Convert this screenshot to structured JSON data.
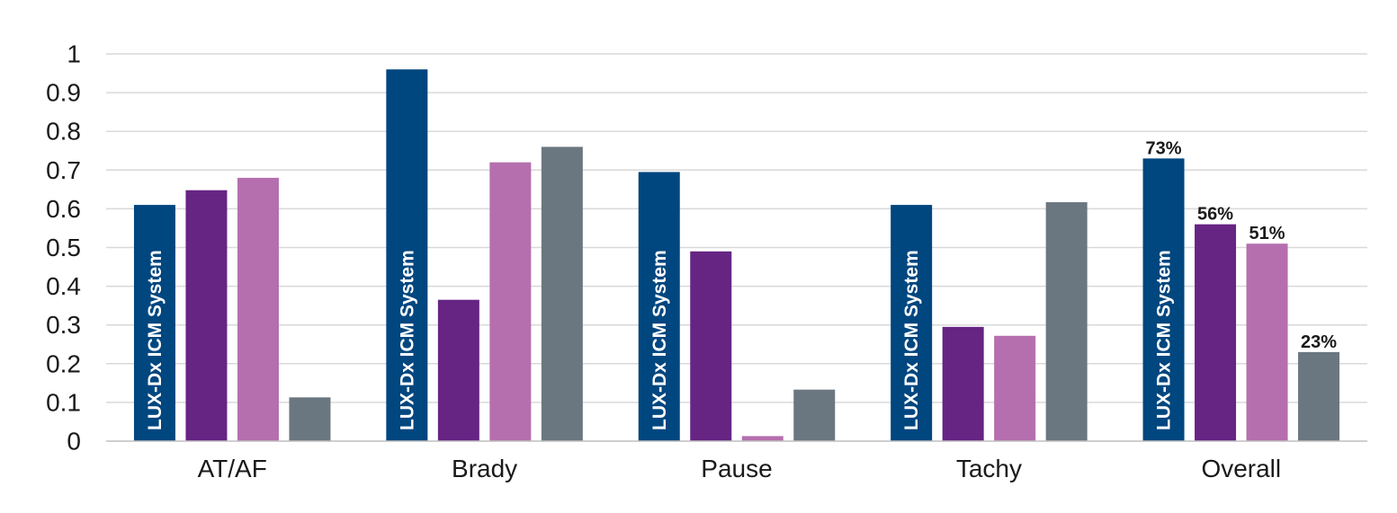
{
  "chart_data": {
    "type": "bar",
    "categories": [
      "AT/AF",
      "Brady",
      "Pause",
      "Tachy",
      "Overall"
    ],
    "series": [
      {
        "name": "LUX-Dx ICM System",
        "color": "#00467f",
        "values": [
          0.61,
          0.96,
          0.695,
          0.61,
          0.73
        ]
      },
      {
        "color": "#662483",
        "values": [
          0.648,
          0.365,
          0.49,
          0.295,
          0.56
        ]
      },
      {
        "color": "#b56faf",
        "values": [
          0.68,
          0.72,
          0.013,
          0.272,
          0.51
        ]
      },
      {
        "color": "#6b7780",
        "values": [
          0.113,
          0.76,
          0.133,
          0.617,
          0.23
        ]
      }
    ],
    "yticks": [
      "0",
      "0.1",
      "0.2",
      "0.3",
      "0.4",
      "0.5",
      "0.6",
      "0.7",
      "0.8",
      "0.9",
      "1"
    ],
    "ylim": [
      0,
      1
    ],
    "grid": true,
    "data_labels": {
      "category": "Overall",
      "labels": [
        "73%",
        "56%",
        "51%",
        "23%"
      ]
    },
    "inbar_label_series": 0
  }
}
